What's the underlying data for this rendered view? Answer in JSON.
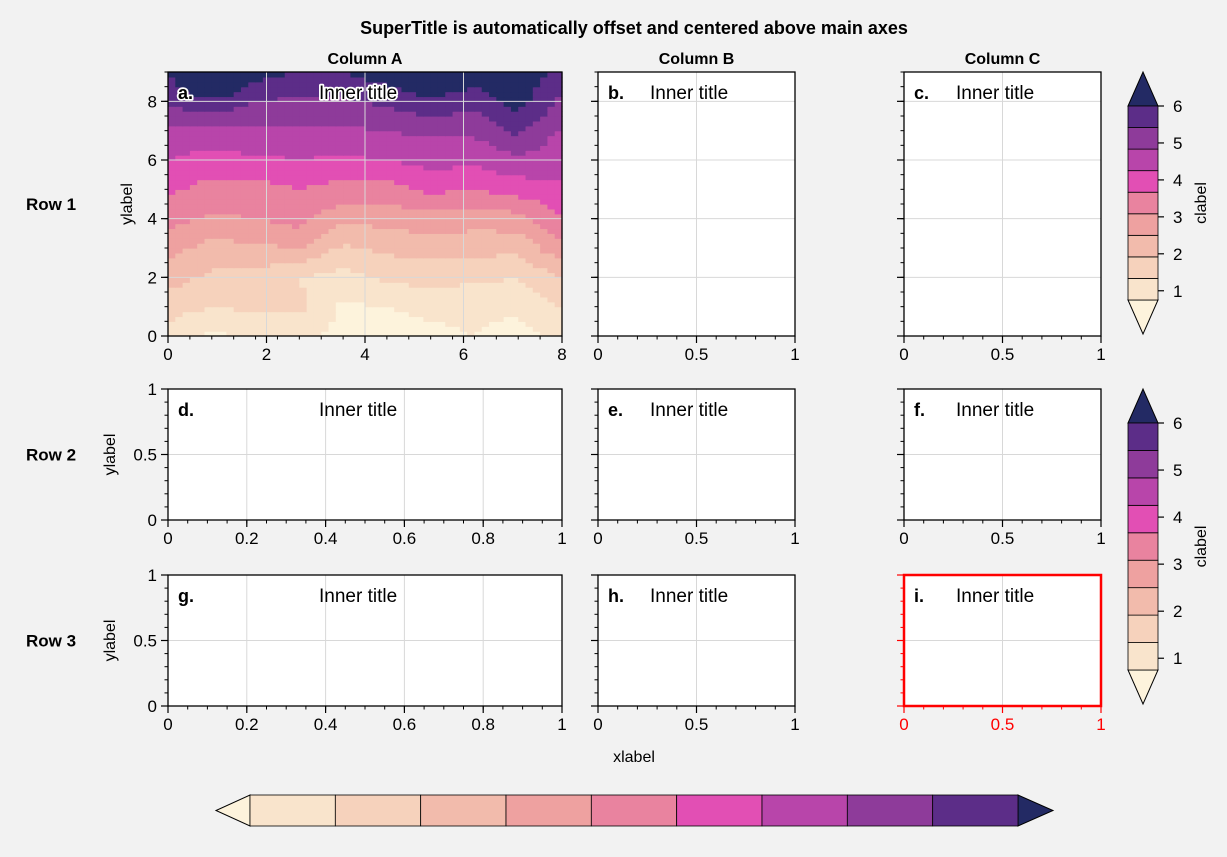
{
  "suptitle": "SuperTitle is automatically offset and centered above main axes",
  "col_titles": [
    "Column A",
    "Column B",
    "Column C"
  ],
  "row_titles": [
    "Row 1",
    "Row 2",
    "Row 3"
  ],
  "xlabel": "xlabel",
  "ylabel": "ylabel",
  "clabel": "clabel",
  "inner_title": "Inner title",
  "panel_labels": [
    "a.",
    "b.",
    "c.",
    "d.",
    "e.",
    "f.",
    "g.",
    "h.",
    "i."
  ],
  "colors": {
    "background": "#f2f2f2",
    "highlight": "#ff0000",
    "grid": "#d8d8d8",
    "levels": [
      "#fdf3dc",
      "#f9e4cc",
      "#f6d2bc",
      "#f2bbac",
      "#eea1a0",
      "#e9839f",
      "#e24fb4",
      "#b845aa",
      "#8e3b9a",
      "#5c2d88",
      "#232a64"
    ]
  },
  "colorbar_ticks": [
    "1",
    "2",
    "3",
    "4",
    "5",
    "6"
  ],
  "highlighted_panel": "i.",
  "chart_data": [
    {
      "type": "heatmap",
      "panel": "a.",
      "xlim": [
        0,
        9
      ],
      "ylim": [
        0,
        9
      ],
      "xticks": [
        "0",
        "2",
        "4",
        "6",
        "8"
      ],
      "yticks": [
        "0",
        "2",
        "4",
        "6",
        "8"
      ],
      "grid": true,
      "levels": [
        0,
        0.5,
        1,
        1.5,
        2,
        2.5,
        3,
        3.5,
        4,
        4.5,
        5,
        5.5,
        6
      ],
      "x": [
        0,
        1,
        2,
        3,
        4,
        5,
        6,
        7,
        8,
        9
      ],
      "y": [
        0,
        1,
        2,
        3,
        4,
        5,
        6,
        7,
        8,
        9
      ],
      "z": [
        [
          0.8,
          0.4,
          0.6,
          0.7,
          0.3,
          0.3,
          0.4,
          0.5,
          0.3,
          0.6
        ],
        [
          1.2,
          1.0,
          1.1,
          1.1,
          0.4,
          0.5,
          0.6,
          0.6,
          0.6,
          1.0
        ],
        [
          1.7,
          1.4,
          1.3,
          1.0,
          0.8,
          1.1,
          1.2,
          1.1,
          1.0,
          1.5
        ],
        [
          2.2,
          1.8,
          1.9,
          2.0,
          1.4,
          1.6,
          1.7,
          1.7,
          1.6,
          2.4
        ],
        [
          2.7,
          2.4,
          2.5,
          2.7,
          2.1,
          2.2,
          2.3,
          2.2,
          2.3,
          3.0
        ],
        [
          3.1,
          2.8,
          2.8,
          3.0,
          2.8,
          2.8,
          3.1,
          3.0,
          3.2,
          3.4
        ],
        [
          3.5,
          3.3,
          3.4,
          3.5,
          3.4,
          3.5,
          3.7,
          3.6,
          3.9,
          3.7
        ],
        [
          3.9,
          3.8,
          3.9,
          3.9,
          3.9,
          4.0,
          4.1,
          4.1,
          4.6,
          3.9
        ],
        [
          4.6,
          4.9,
          4.5,
          4.4,
          4.4,
          4.6,
          4.9,
          4.7,
          5.2,
          4.4
        ],
        [
          5.0,
          6.3,
          5.2,
          5.0,
          5.0,
          5.3,
          5.6,
          5.3,
          5.5,
          4.7
        ]
      ]
    },
    {
      "type": "line",
      "panel": "b.",
      "xlim": [
        0,
        1
      ],
      "xticks": [
        "0",
        "0.5",
        "1"
      ],
      "grid": true,
      "series": []
    },
    {
      "type": "line",
      "panel": "c.",
      "xlim": [
        0,
        1
      ],
      "xticks": [
        "0",
        "0.5",
        "1"
      ],
      "grid": true,
      "series": []
    },
    {
      "type": "line",
      "panel": "d.",
      "xlim": [
        0,
        1
      ],
      "ylim": [
        0,
        1
      ],
      "xticks": [
        "0",
        "0.2",
        "0.4",
        "0.6",
        "0.8",
        "1"
      ],
      "yticks": [
        "0",
        "0.5",
        "1"
      ],
      "grid": true,
      "series": []
    },
    {
      "type": "line",
      "panel": "e.",
      "xlim": [
        0,
        1
      ],
      "ylim": [
        0,
        1
      ],
      "xticks": [
        "0",
        "0.5",
        "1"
      ],
      "grid": true,
      "series": []
    },
    {
      "type": "line",
      "panel": "f.",
      "xlim": [
        0,
        1
      ],
      "ylim": [
        0,
        1
      ],
      "xticks": [
        "0",
        "0.5",
        "1"
      ],
      "grid": true,
      "series": []
    },
    {
      "type": "line",
      "panel": "g.",
      "xlim": [
        0,
        1
      ],
      "ylim": [
        0,
        1
      ],
      "xticks": [
        "0",
        "0.2",
        "0.4",
        "0.6",
        "0.8",
        "1"
      ],
      "yticks": [
        "0",
        "0.5",
        "1"
      ],
      "grid": true,
      "series": []
    },
    {
      "type": "line",
      "panel": "h.",
      "xlim": [
        0,
        1
      ],
      "ylim": [
        0,
        1
      ],
      "xticks": [
        "0",
        "0.5",
        "1"
      ],
      "grid": true,
      "series": []
    },
    {
      "type": "line",
      "panel": "i.",
      "xlim": [
        0,
        1
      ],
      "ylim": [
        0,
        1
      ],
      "xticks": [
        "0",
        "0.5",
        "1"
      ],
      "grid": true,
      "series": []
    }
  ]
}
